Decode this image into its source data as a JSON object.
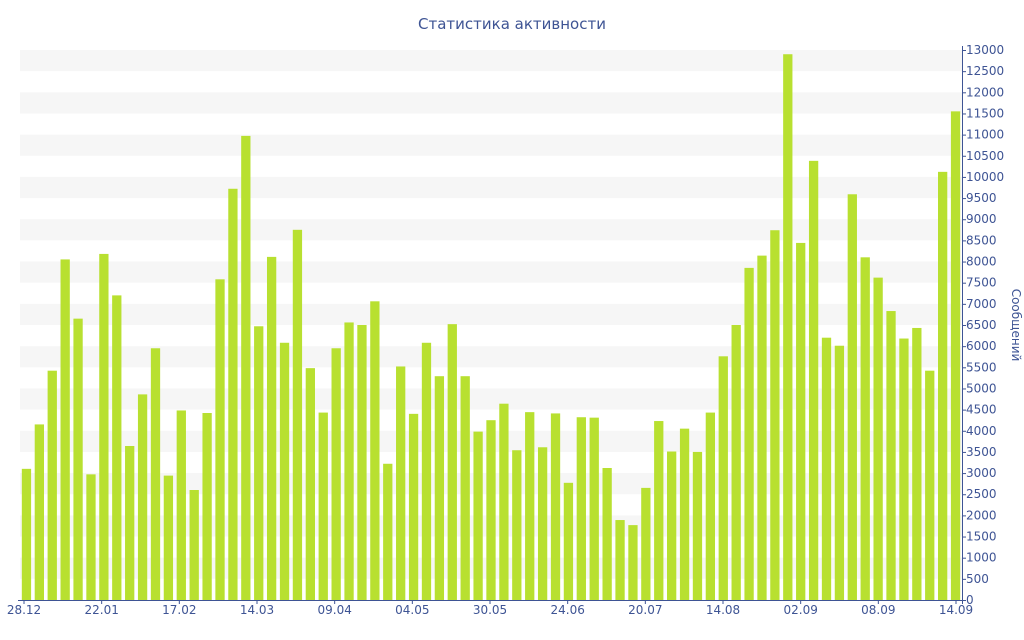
{
  "chart_data": {
    "type": "bar",
    "title": "Статистика активности",
    "xlabel": "",
    "ylabel": "Сообщений",
    "ylim": [
      0,
      13000
    ],
    "ytick_step": 500,
    "y_axis_side": "right",
    "bar_color": "#b8e030",
    "band_color": "#f6f6f6",
    "axis_color": "#3e5494",
    "x_tick_labels": [
      "28.12",
      "22.01",
      "17.02",
      "14.03",
      "09.04",
      "04.05",
      "30.05",
      "24.06",
      "20.07",
      "14.08",
      "02.09",
      "08.09",
      "14.09"
    ],
    "values": [
      3100,
      4150,
      5420,
      8050,
      6650,
      2970,
      8180,
      7200,
      3640,
      4860,
      5950,
      2940,
      4480,
      2600,
      4420,
      7580,
      9720,
      10970,
      6470,
      8110,
      6080,
      8750,
      5480,
      4430,
      5950,
      6560,
      6500,
      7060,
      3220,
      5520,
      4400,
      6080,
      5290,
      6520,
      5290,
      3980,
      4250,
      4640,
      3540,
      4440,
      3610,
      4410,
      2770,
      4320,
      4310,
      3120,
      1890,
      1770,
      2650,
      4230,
      3510,
      4050,
      3500,
      4430,
      5760,
      6500,
      7850,
      8140,
      8740,
      12900,
      8440,
      10380,
      6200,
      6010,
      9590,
      8100,
      7620,
      6830,
      6180,
      6430,
      5420,
      10120,
      11550
    ]
  }
}
